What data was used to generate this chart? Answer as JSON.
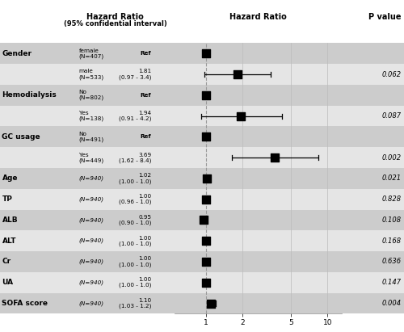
{
  "col_header1": "Hazard Ratio",
  "col_header1b": "(95% confidential interval)",
  "col_header2": "Hazard Ratio",
  "col_header3": "P value",
  "rows": [
    {
      "label": "Gender",
      "sublabel": "female\n(N=407)",
      "hr_text": "Ref",
      "hr": 1.0,
      "lo": null,
      "hi": null,
      "pval": "",
      "is_ref": true,
      "italic_sub": false,
      "shaded": true
    },
    {
      "label": "",
      "sublabel": "male\n(N=533)",
      "hr_text": "1.81\n(0.97 - 3.4)",
      "hr": 1.81,
      "lo": 0.97,
      "hi": 3.4,
      "pval": "0.062",
      "is_ref": false,
      "italic_sub": false,
      "shaded": false
    },
    {
      "label": "Hemodialysis",
      "sublabel": "No\n(N=802)",
      "hr_text": "Ref",
      "hr": 1.0,
      "lo": null,
      "hi": null,
      "pval": "",
      "is_ref": true,
      "italic_sub": false,
      "shaded": true
    },
    {
      "label": "",
      "sublabel": "Yes\n(N=138)",
      "hr_text": "1.94\n(0.91 - 4.2)",
      "hr": 1.94,
      "lo": 0.91,
      "hi": 4.2,
      "pval": "0.087",
      "is_ref": false,
      "italic_sub": false,
      "shaded": false
    },
    {
      "label": "GC usage",
      "sublabel": "No\n(N=491)",
      "hr_text": "Ref",
      "hr": 1.0,
      "lo": null,
      "hi": null,
      "pval": "",
      "is_ref": true,
      "italic_sub": false,
      "shaded": true
    },
    {
      "label": "",
      "sublabel": "Yes\n(N=449)",
      "hr_text": "3.69\n(1.62 - 8.4)",
      "hr": 3.69,
      "lo": 1.62,
      "hi": 8.4,
      "pval": "0.002",
      "is_ref": false,
      "italic_sub": false,
      "shaded": false
    },
    {
      "label": "Age",
      "sublabel": "(N=940)",
      "hr_text": "1.02\n(1.00 - 1.0)",
      "hr": 1.02,
      "lo": 1.0,
      "hi": 1.05,
      "pval": "0.021",
      "is_ref": false,
      "italic_sub": true,
      "shaded": true
    },
    {
      "label": "TP",
      "sublabel": "(N=940)",
      "hr_text": "1.00\n(0.96 - 1.0)",
      "hr": 1.0,
      "lo": 0.96,
      "hi": 1.04,
      "pval": "0.828",
      "is_ref": false,
      "italic_sub": true,
      "shaded": false
    },
    {
      "label": "ALB",
      "sublabel": "(N=940)",
      "hr_text": "0.95\n(0.90 - 1.0)",
      "hr": 0.95,
      "lo": 0.9,
      "hi": 1.0,
      "pval": "0.108",
      "is_ref": false,
      "italic_sub": true,
      "shaded": true
    },
    {
      "label": "ALT",
      "sublabel": "(N=940)",
      "hr_text": "1.00\n(1.00 - 1.0)",
      "hr": 1.0,
      "lo": 1.0,
      "hi": 1.01,
      "pval": "0.168",
      "is_ref": false,
      "italic_sub": true,
      "shaded": false
    },
    {
      "label": "Cr",
      "sublabel": "(N=940)",
      "hr_text": "1.00\n(1.00 - 1.0)",
      "hr": 1.0,
      "lo": 1.0,
      "hi": 1.01,
      "pval": "0.636",
      "is_ref": false,
      "italic_sub": true,
      "shaded": true
    },
    {
      "label": "UA",
      "sublabel": "(N=940)",
      "hr_text": "1.00\n(1.00 - 1.0)",
      "hr": 1.0,
      "lo": 1.0,
      "hi": 1.01,
      "pval": "0.147",
      "is_ref": false,
      "italic_sub": true,
      "shaded": false
    },
    {
      "label": "SOFA score",
      "sublabel": "(N=940)",
      "hr_text": "1.10\n(1.03 - 1.2)",
      "hr": 1.1,
      "lo": 1.03,
      "hi": 1.2,
      "pval": "0.004",
      "is_ref": false,
      "italic_sub": true,
      "shaded": true
    }
  ],
  "bg_color": "#ffffff",
  "shaded_color": "#cccccc",
  "unshaded_color": "#e5e5e5",
  "xmin": 0.55,
  "xmax": 13.0,
  "xticks": [
    1,
    2,
    5,
    10
  ]
}
